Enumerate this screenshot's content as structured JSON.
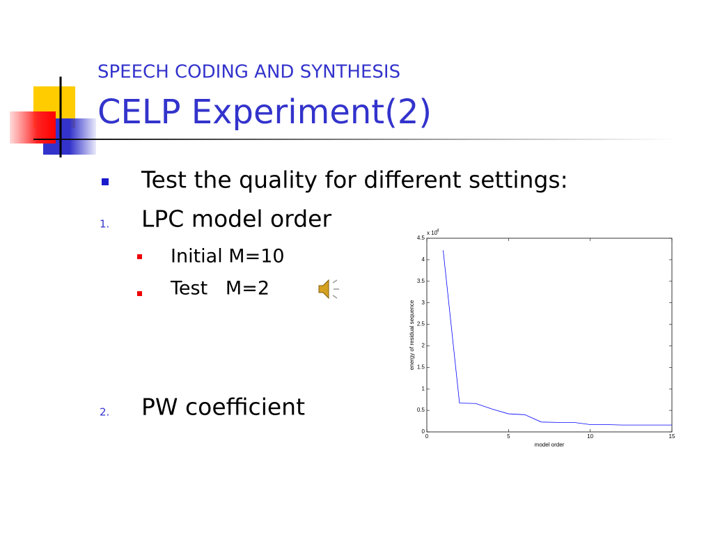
{
  "header": {
    "subtitle": "SPEECH CODING AND SYNTHESIS",
    "title": "CELP Experiment(2)"
  },
  "bullets": [
    {
      "text": "Test the quality for different settings:"
    },
    {
      "marker": "1.",
      "text": "LPC model order",
      "items": [
        "Initial M=10",
        "Test   M=2"
      ]
    },
    {
      "marker": "2.",
      "text": "PW coefficient"
    }
  ],
  "chart_data": {
    "type": "line",
    "x_label": "model order",
    "y_label": "energy of residual sequence",
    "y_multiplier": {
      "base": "x 10",
      "exponent": "4"
    },
    "x": [
      1,
      2,
      3,
      4,
      5,
      6,
      7,
      8,
      9,
      10,
      11,
      12,
      13,
      14,
      15
    ],
    "series": [
      {
        "color": "#0000ff",
        "values": [
          4.22,
          0.67,
          0.66,
          0.53,
          0.42,
          0.4,
          0.23,
          0.22,
          0.22,
          0.17,
          0.17,
          0.16,
          0.16,
          0.16,
          0.16
        ]
      }
    ],
    "xlim": [
      0,
      15
    ],
    "xticks": [
      0,
      5,
      10,
      15
    ],
    "ylim": [
      0,
      4.5
    ],
    "yticks": [
      0,
      0.5,
      1,
      1.5,
      2,
      2.5,
      3,
      3.5,
      4,
      4.5
    ]
  }
}
